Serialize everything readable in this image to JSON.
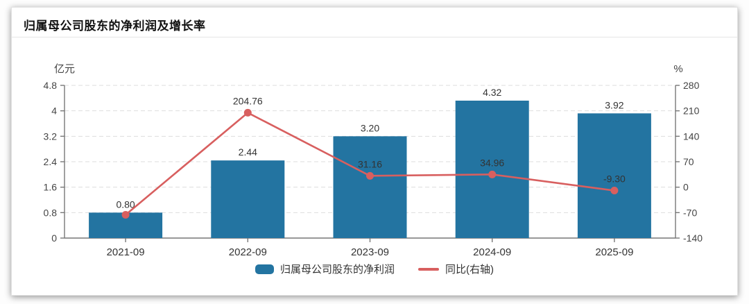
{
  "header": {
    "title": "归属母公司股东的净利润及增长率"
  },
  "legend": [
    {
      "type": "bar",
      "label": "归属母公司股东的净利润",
      "color": "#2374a1"
    },
    {
      "type": "line",
      "label": "同比(右轴)",
      "color": "#d85f5f"
    }
  ],
  "chart_data": {
    "type": "bar+line combo",
    "categories": [
      "2021-09",
      "2022-09",
      "2023-09",
      "2024-09",
      "2025-09"
    ],
    "series": [
      {
        "name": "归属母公司股东的净利润",
        "type": "bar",
        "axis": "left",
        "values": [
          0.8,
          2.44,
          3.2,
          4.32,
          3.92
        ],
        "labels": [
          "0.80",
          "2.44",
          "3.20",
          "4.32",
          "3.92"
        ],
        "color": "#2374a1"
      },
      {
        "name": "同比(右轴)",
        "type": "line",
        "axis": "right",
        "values": [
          -76,
          204.76,
          31.16,
          34.96,
          -9.3
        ],
        "labels": [
          "",
          "204.76",
          "31.16",
          "34.96",
          "-9.30"
        ],
        "color": "#d85f5f",
        "note": "2021-09 point drawn on chart but unlabeled; value estimated from pixel position"
      }
    ],
    "left_axis": {
      "unit": "亿元",
      "min": 0,
      "max": 4.8,
      "ticks": [
        0,
        0.8,
        1.6,
        2.4,
        3.2,
        4,
        4.8
      ],
      "tick_labels": [
        "0",
        "0.8",
        "1.6",
        "2.4",
        "3.2",
        "4",
        "4.8"
      ]
    },
    "right_axis": {
      "unit": "%",
      "min": -140,
      "max": 280,
      "ticks": [
        -140,
        -70,
        0,
        70,
        140,
        210,
        280
      ],
      "tick_labels": [
        "-140",
        "-70",
        "0",
        "70",
        "140",
        "210",
        "280"
      ]
    },
    "grid": true,
    "grid_style": "dashed",
    "legend_position": "bottom"
  },
  "style": {
    "grid_color": "#dddddd",
    "axis_color": "#777777",
    "axis_text_color": "#444444",
    "label_text_color": "#333333"
  }
}
